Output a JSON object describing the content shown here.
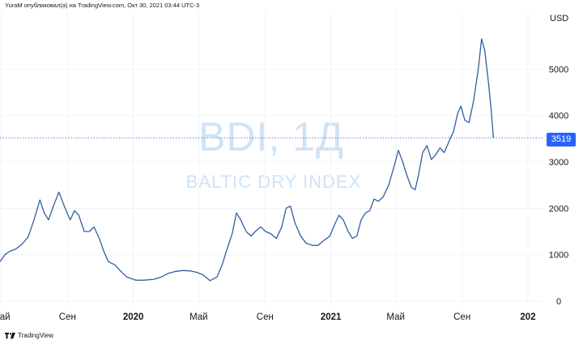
{
  "header_text": "YuraM опубликовал(а) на TradingView.com, Окт 30, 2021 03:44 UTC-3",
  "watermark": {
    "symbol": "BDI, 1Д",
    "name": "BALTIC DRY INDEX"
  },
  "currency": "USD",
  "last_price": "3519",
  "footer_brand": "TradingView",
  "colors": {
    "line": "#2f5fa2",
    "badge": "#2962ff",
    "grid": "#f0f3fa",
    "watermark": "#cfe3f5"
  },
  "chart_data": {
    "type": "line",
    "title": "",
    "ylabel": "",
    "xlabel": "",
    "ylim": [
      0,
      6000
    ],
    "grid": true,
    "y_ticks": [
      0,
      1000,
      2000,
      3000,
      4000,
      5000
    ],
    "y_tick_labels": [
      "0",
      "1000",
      "2000",
      "3000",
      "4000",
      "5000"
    ],
    "x_ticks": [
      {
        "date": "2019-05-01",
        "label": "Май",
        "bold": false
      },
      {
        "date": "2019-09-01",
        "label": "Сен",
        "bold": false
      },
      {
        "date": "2020-01-01",
        "label": "2020",
        "bold": true
      },
      {
        "date": "2020-05-01",
        "label": "Май",
        "bold": false
      },
      {
        "date": "2020-09-01",
        "label": "Сен",
        "bold": false
      },
      {
        "date": "2021-01-01",
        "label": "2021",
        "bold": true
      },
      {
        "date": "2021-05-01",
        "label": "Май",
        "bold": false
      },
      {
        "date": "2021-09-01",
        "label": "Сен",
        "bold": false
      },
      {
        "date": "2022-01-01",
        "label": "202",
        "bold": true
      }
    ],
    "x_range": [
      "2019-04-29",
      "2022-01-28"
    ],
    "series": [
      {
        "points": [
          [
            "2019-04-29",
            850
          ],
          [
            "2019-05-08",
            1000
          ],
          [
            "2019-05-18",
            1080
          ],
          [
            "2019-05-28",
            1120
          ],
          [
            "2019-06-08",
            1220
          ],
          [
            "2019-06-20",
            1380
          ],
          [
            "2019-07-01",
            1750
          ],
          [
            "2019-07-12",
            2180
          ],
          [
            "2019-07-20",
            1900
          ],
          [
            "2019-07-28",
            1750
          ],
          [
            "2019-08-06",
            2050
          ],
          [
            "2019-08-16",
            2350
          ],
          [
            "2019-08-26",
            2050
          ],
          [
            "2019-09-06",
            1750
          ],
          [
            "2019-09-14",
            1950
          ],
          [
            "2019-09-22",
            1850
          ],
          [
            "2019-10-02",
            1500
          ],
          [
            "2019-10-12",
            1500
          ],
          [
            "2019-10-20",
            1600
          ],
          [
            "2019-10-30",
            1350
          ],
          [
            "2019-11-08",
            1050
          ],
          [
            "2019-11-16",
            850
          ],
          [
            "2019-11-28",
            780
          ],
          [
            "2019-12-08",
            650
          ],
          [
            "2019-12-20",
            520
          ],
          [
            "2020-01-06",
            450
          ],
          [
            "2020-01-20",
            450
          ],
          [
            "2020-02-08",
            470
          ],
          [
            "2020-02-22",
            520
          ],
          [
            "2020-03-06",
            600
          ],
          [
            "2020-03-20",
            640
          ],
          [
            "2020-04-02",
            660
          ],
          [
            "2020-04-16",
            650
          ],
          [
            "2020-04-28",
            620
          ],
          [
            "2020-05-10",
            560
          ],
          [
            "2020-05-22",
            440
          ],
          [
            "2020-06-04",
            520
          ],
          [
            "2020-06-14",
            800
          ],
          [
            "2020-06-22",
            1100
          ],
          [
            "2020-07-02",
            1450
          ],
          [
            "2020-07-10",
            1900
          ],
          [
            "2020-07-18",
            1750
          ],
          [
            "2020-07-28",
            1500
          ],
          [
            "2020-08-06",
            1400
          ],
          [
            "2020-08-14",
            1500
          ],
          [
            "2020-08-24",
            1600
          ],
          [
            "2020-09-02",
            1500
          ],
          [
            "2020-09-12",
            1450
          ],
          [
            "2020-09-22",
            1350
          ],
          [
            "2020-10-02",
            1600
          ],
          [
            "2020-10-10",
            2000
          ],
          [
            "2020-10-18",
            2050
          ],
          [
            "2020-10-26",
            1700
          ],
          [
            "2020-11-06",
            1400
          ],
          [
            "2020-11-16",
            1250
          ],
          [
            "2020-11-28",
            1200
          ],
          [
            "2020-12-08",
            1200
          ],
          [
            "2020-12-18",
            1300
          ],
          [
            "2020-12-30",
            1400
          ],
          [
            "2021-01-08",
            1650
          ],
          [
            "2021-01-16",
            1850
          ],
          [
            "2021-01-24",
            1750
          ],
          [
            "2021-02-02",
            1500
          ],
          [
            "2021-02-10",
            1350
          ],
          [
            "2021-02-18",
            1400
          ],
          [
            "2021-02-26",
            1750
          ],
          [
            "2021-03-06",
            1900
          ],
          [
            "2021-03-14",
            1950
          ],
          [
            "2021-03-22",
            2200
          ],
          [
            "2021-03-30",
            2150
          ],
          [
            "2021-04-08",
            2250
          ],
          [
            "2021-04-18",
            2500
          ],
          [
            "2021-04-28",
            2900
          ],
          [
            "2021-05-06",
            3250
          ],
          [
            "2021-05-14",
            3000
          ],
          [
            "2021-05-22",
            2700
          ],
          [
            "2021-05-30",
            2450
          ],
          [
            "2021-06-06",
            2400
          ],
          [
            "2021-06-12",
            2700
          ],
          [
            "2021-06-20",
            3200
          ],
          [
            "2021-06-28",
            3350
          ],
          [
            "2021-07-06",
            3050
          ],
          [
            "2021-07-14",
            3150
          ],
          [
            "2021-07-22",
            3300
          ],
          [
            "2021-07-30",
            3200
          ],
          [
            "2021-08-08",
            3450
          ],
          [
            "2021-08-16",
            3650
          ],
          [
            "2021-08-24",
            4050
          ],
          [
            "2021-08-30",
            4200
          ],
          [
            "2021-09-06",
            3900
          ],
          [
            "2021-09-14",
            3850
          ],
          [
            "2021-09-22",
            4300
          ],
          [
            "2021-10-01",
            5000
          ],
          [
            "2021-10-07",
            5650
          ],
          [
            "2021-10-13",
            5400
          ],
          [
            "2021-10-20",
            4700
          ],
          [
            "2021-10-25",
            4100
          ],
          [
            "2021-10-29",
            3519
          ]
        ]
      }
    ]
  }
}
